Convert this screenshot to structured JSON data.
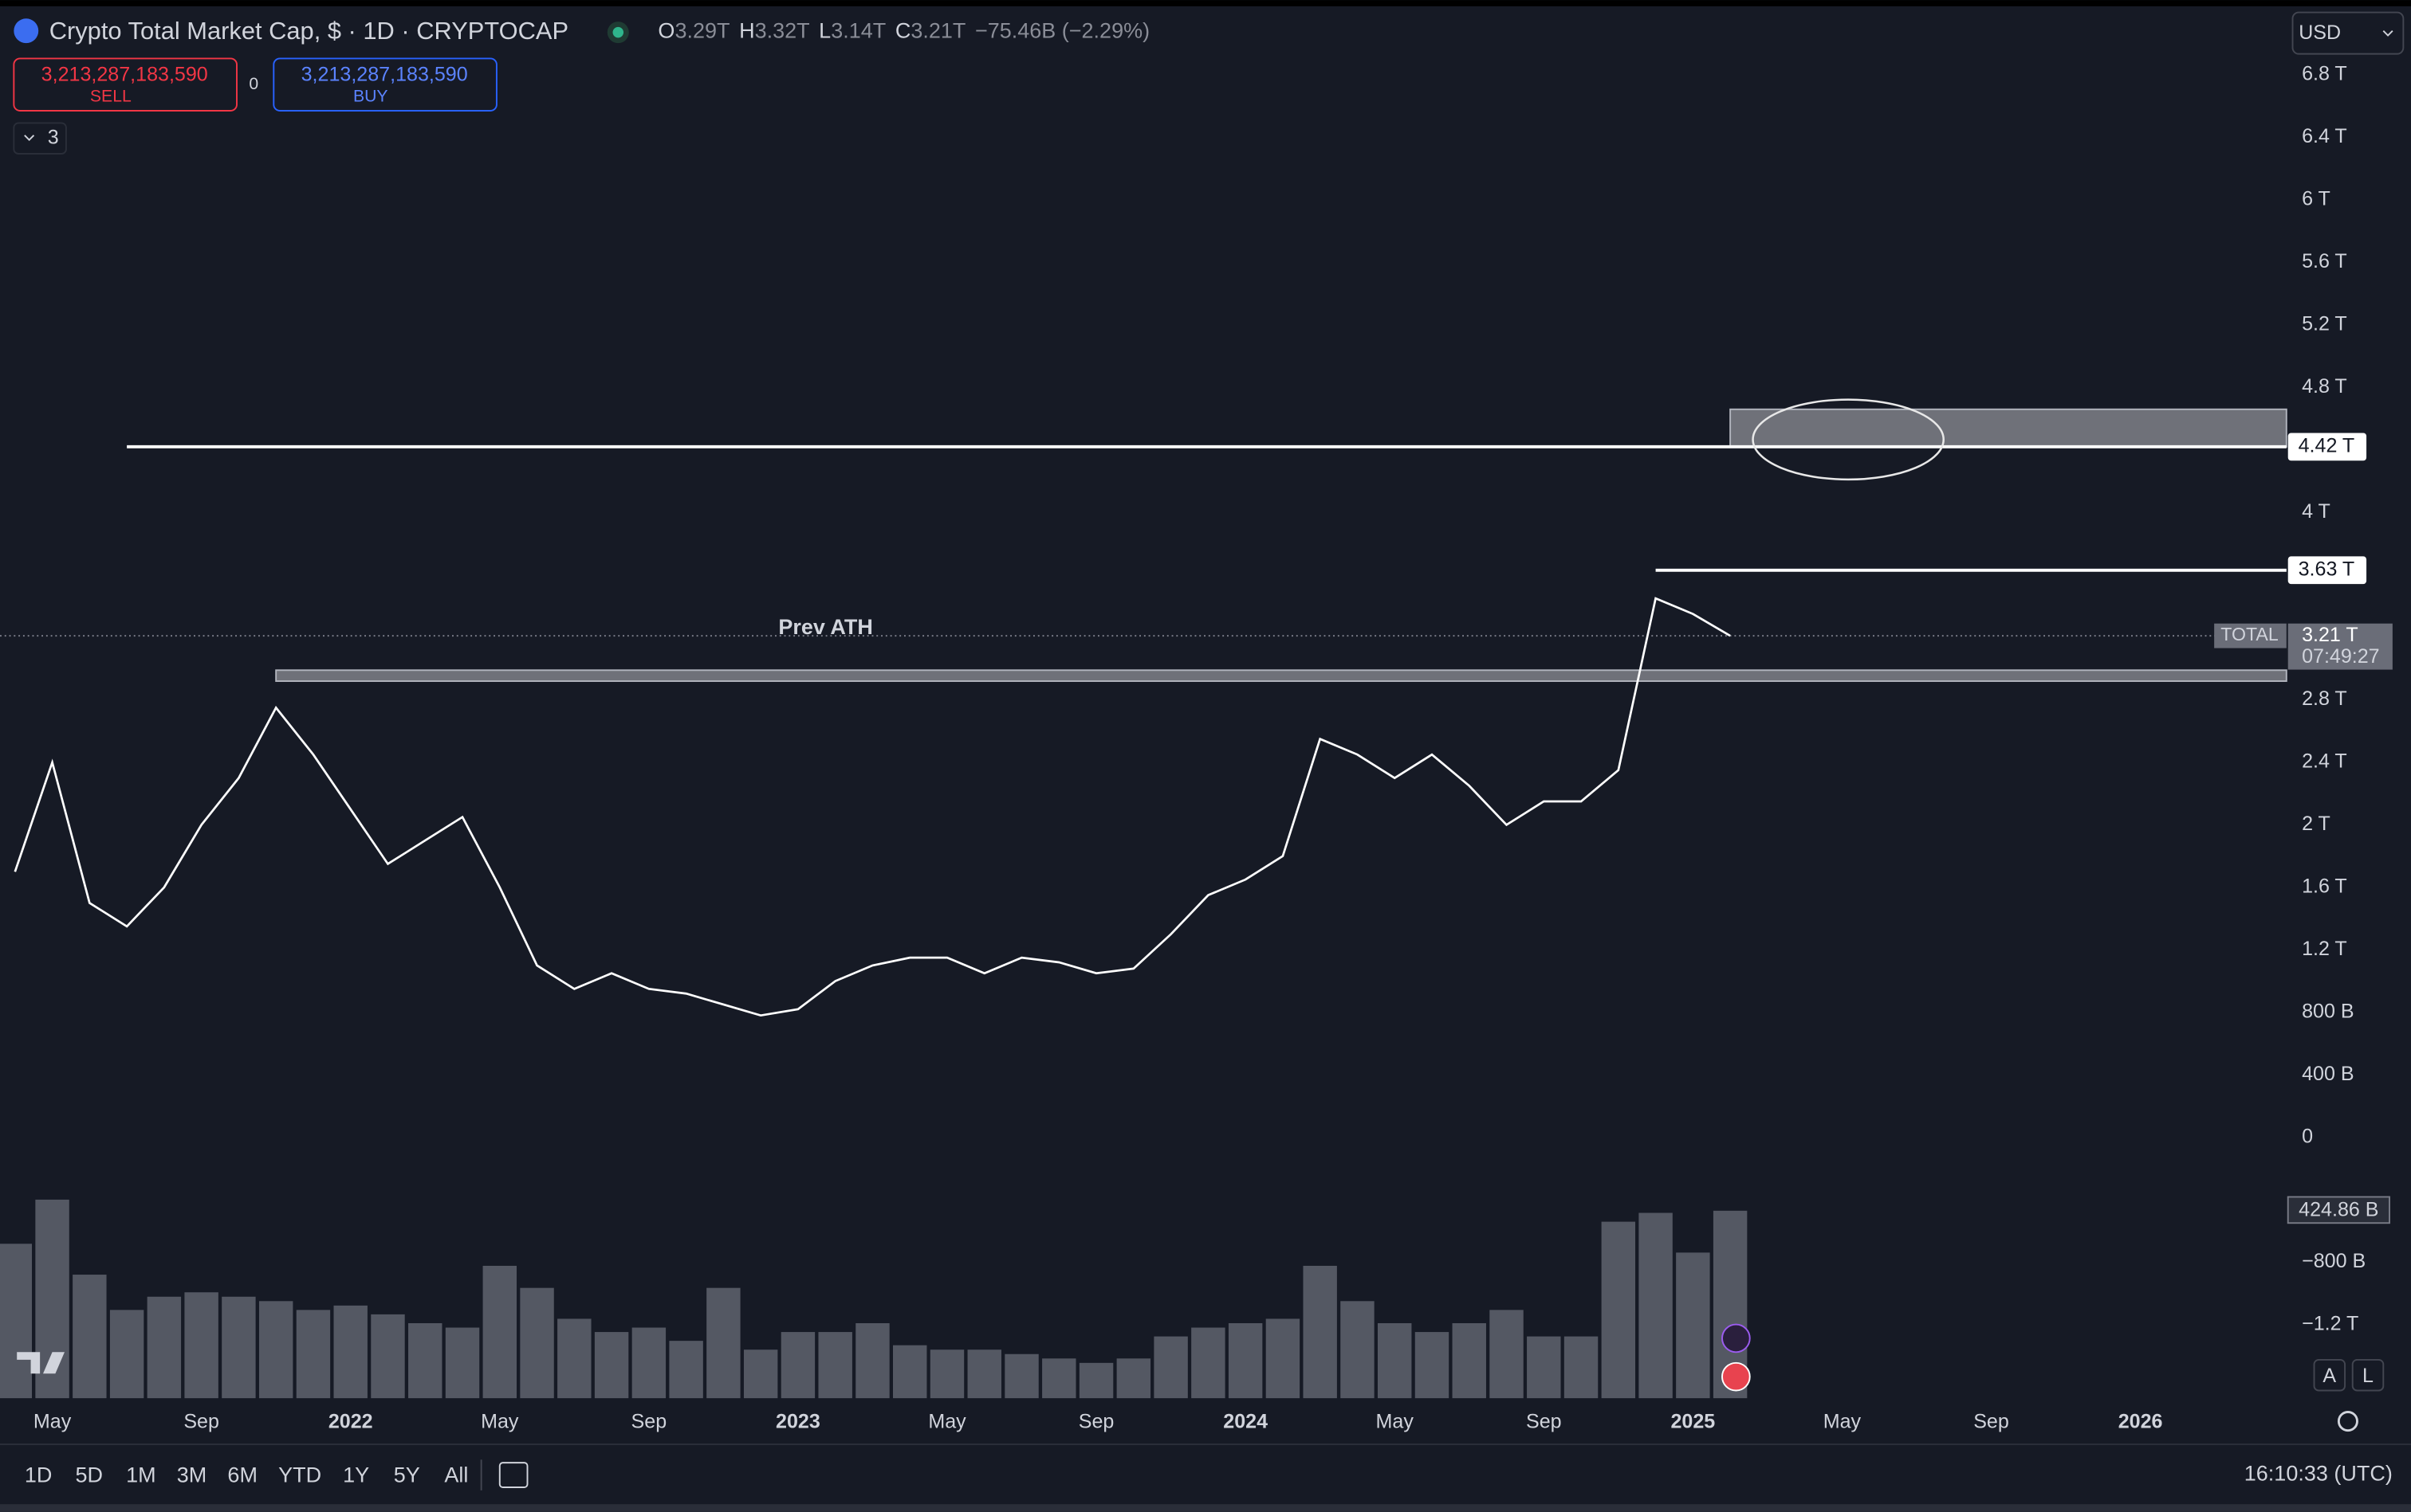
{
  "header": {
    "title": "Crypto Total Market Cap, $ · 1D · CRYPTOCAP",
    "ohlc": [
      {
        "key": "O",
        "value": "3.29T"
      },
      {
        "key": "H",
        "value": "3.32T"
      },
      {
        "key": "L",
        "value": "3.14T"
      },
      {
        "key": "C",
        "value": "3.21T"
      }
    ],
    "change": "−75.46B (−2.29%)",
    "currency": "USD"
  },
  "trade": {
    "sell_price": "3,213,287,183,590",
    "sell_label": "SELL",
    "spread": "0",
    "buy_price": "3,213,287,183,590",
    "buy_label": "BUY"
  },
  "indicators_count": "3",
  "scale_buttons": [
    "A",
    "L"
  ],
  "toolbar": {
    "ranges": [
      "1D",
      "5D",
      "1M",
      "3M",
      "6M",
      "YTD",
      "1Y",
      "5Y",
      "All"
    ],
    "clock": "16:10:33 (UTC)"
  },
  "chart_data": {
    "type": "line",
    "color": "#ffffff",
    "x": [
      "2021-04",
      "2021-05",
      "2021-06",
      "2021-07",
      "2021-08",
      "2021-09",
      "2021-10",
      "2021-11",
      "2021-12",
      "2022-01",
      "2022-02",
      "2022-03",
      "2022-04",
      "2022-05",
      "2022-06",
      "2022-07",
      "2022-08",
      "2022-09",
      "2022-10",
      "2022-11",
      "2022-12",
      "2023-01",
      "2023-02",
      "2023-03",
      "2023-04",
      "2023-05",
      "2023-06",
      "2023-07",
      "2023-08",
      "2023-09",
      "2023-10",
      "2023-11",
      "2023-12",
      "2024-01",
      "2024-02",
      "2024-03",
      "2024-04",
      "2024-05",
      "2024-06",
      "2024-07",
      "2024-08",
      "2024-09",
      "2024-10",
      "2024-11",
      "2024-12",
      "2025-01",
      "2025-02"
    ],
    "values": [
      1.7,
      2.4,
      1.5,
      1.35,
      1.6,
      2.0,
      2.3,
      2.75,
      2.45,
      2.1,
      1.75,
      1.9,
      2.05,
      1.6,
      1.1,
      0.95,
      1.05,
      0.95,
      0.92,
      0.85,
      0.78,
      0.82,
      1.0,
      1.1,
      1.15,
      1.15,
      1.05,
      1.15,
      1.12,
      1.05,
      1.08,
      1.3,
      1.55,
      1.65,
      1.8,
      2.55,
      2.45,
      2.3,
      2.45,
      2.25,
      2.0,
      2.15,
      2.15,
      2.35,
      3.45,
      3.35,
      3.21
    ],
    "volume": {
      "color": "#6a6d78",
      "last_value_label": "424.86 B",
      "values": [
        350,
        450,
        280,
        200,
        230,
        240,
        230,
        220,
        200,
        210,
        190,
        170,
        160,
        300,
        250,
        180,
        150,
        160,
        130,
        250,
        110,
        150,
        150,
        170,
        120,
        110,
        110,
        100,
        90,
        80,
        90,
        140,
        160,
        170,
        180,
        300,
        220,
        170,
        150,
        170,
        200,
        140,
        140,
        400,
        420,
        330,
        424.86
      ]
    },
    "ylim": [
      -1.67,
      7.23
    ],
    "yticks": [
      {
        "value": 6.8,
        "label": "6.8 T"
      },
      {
        "value": 6.4,
        "label": "6.4 T"
      },
      {
        "value": 6,
        "label": "6 T"
      },
      {
        "value": 5.6,
        "label": "5.6 T"
      },
      {
        "value": 5.2,
        "label": "5.2 T"
      },
      {
        "value": 4.8,
        "label": "4.8 T"
      },
      {
        "value": 4,
        "label": "4 T"
      },
      {
        "value": 2.8,
        "label": "2.8 T"
      },
      {
        "value": 2.4,
        "label": "2.4 T"
      },
      {
        "value": 2,
        "label": "2 T"
      },
      {
        "value": 1.6,
        "label": "1.6 T"
      },
      {
        "value": 1.2,
        "label": "1.2 T"
      },
      {
        "value": 0.8,
        "label": "800 B"
      },
      {
        "value": 0.4,
        "label": "400 B"
      },
      0,
      {
        "value": -0.8,
        "label": "−800 B"
      },
      {
        "value": -1.2,
        "label": "−1.2 T"
      }
    ],
    "xticks": [
      {
        "value": "2021-05",
        "label": "May"
      },
      {
        "value": "2021-09",
        "label": "Sep"
      },
      {
        "value": "2022-01",
        "label": "2022"
      },
      {
        "value": "2022-05",
        "label": "May"
      },
      {
        "value": "2022-09",
        "label": "Sep"
      },
      {
        "value": "2023-01",
        "label": "2023"
      },
      {
        "value": "2023-05",
        "label": "May"
      },
      {
        "value": "2023-09",
        "label": "Sep"
      },
      {
        "value": "2024-01",
        "label": "2024"
      },
      {
        "value": "2024-05",
        "label": "May"
      },
      {
        "value": "2024-09",
        "label": "Sep"
      },
      {
        "value": "2025-01",
        "label": "2025"
      },
      {
        "value": "2025-05",
        "label": "May"
      },
      {
        "value": "2025-09",
        "label": "Sep"
      },
      {
        "value": "2026-01",
        "label": "2026"
      }
    ],
    "levels": [
      {
        "value": 4.42,
        "label": "4.42 T",
        "start": "2021-07"
      },
      {
        "value": 3.63,
        "label": "3.63 T",
        "start": "2024-12"
      }
    ],
    "zones": [
      {
        "low": 2.92,
        "high": 2.99,
        "start": "2021-11"
      },
      {
        "low": 4.42,
        "high": 4.66,
        "start": "2025-02"
      }
    ],
    "current_price": {
      "value": 3.21,
      "label": "3.21 T",
      "symbol": "TOTAL",
      "countdown": "07:49:27"
    },
    "annotation": "Prev ATH"
  }
}
